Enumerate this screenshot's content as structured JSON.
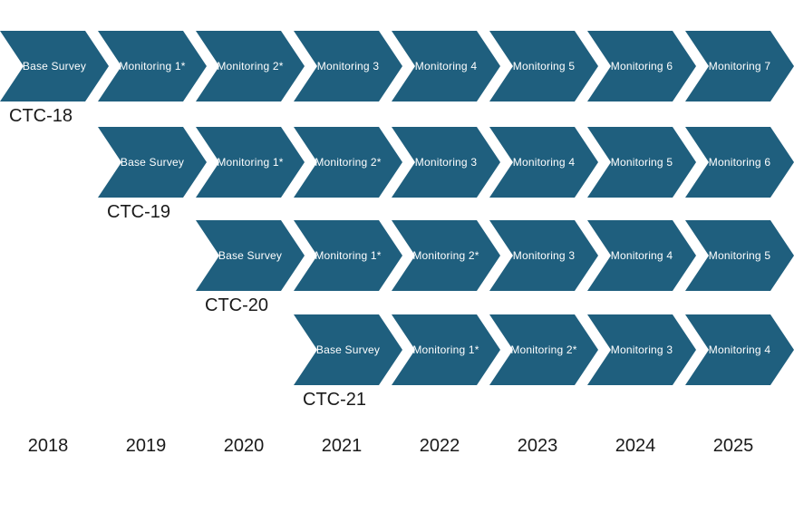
{
  "diagram": {
    "chevron_fill": "#1F5F7E",
    "chevron_text_color": "#FFFFFF",
    "label_text_color": "#1A1A1A",
    "rows": [
      {
        "cohort": "CTC-18",
        "start_year": "2018",
        "steps": [
          "Base Survey",
          "Monitoring 1*",
          "Monitoring 2*",
          "Monitoring 3",
          "Monitoring 4",
          "Monitoring 5",
          "Monitoring 6",
          "Monitoring 7"
        ]
      },
      {
        "cohort": "CTC-19",
        "start_year": "2019",
        "steps": [
          "Base Survey",
          "Monitoring 1*",
          "Monitoring 2*",
          "Monitoring 3",
          "Monitoring 4",
          "Monitoring 5",
          "Monitoring 6"
        ]
      },
      {
        "cohort": "CTC-20",
        "start_year": "2020",
        "steps": [
          "Base Survey",
          "Monitoring 1*",
          "Monitoring 2*",
          "Monitoring 3",
          "Monitoring 4",
          "Monitoring 5"
        ]
      },
      {
        "cohort": "CTC-21",
        "start_year": "2021",
        "steps": [
          "Base Survey",
          "Monitoring 1*",
          "Monitoring 2*",
          "Monitoring 3",
          "Monitoring 4"
        ]
      }
    ],
    "years": [
      "2018",
      "2019",
      "2020",
      "2021",
      "2022",
      "2023",
      "2024",
      "2025"
    ]
  }
}
